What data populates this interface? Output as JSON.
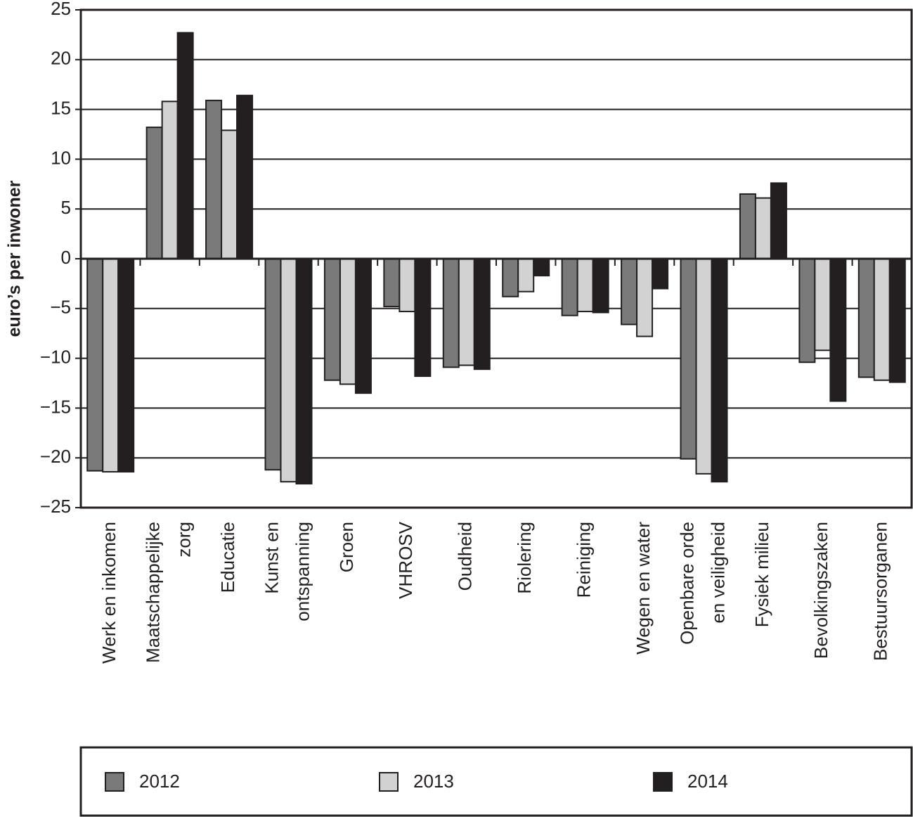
{
  "chart_data": {
    "type": "bar",
    "y_label": "euro’s per inwoner",
    "categories": [
      [
        "Werk en inkomen"
      ],
      [
        "Maatschappelijke",
        "zorg"
      ],
      [
        "Educatie"
      ],
      [
        "Kunst en",
        "ontspanning"
      ],
      [
        "Groen"
      ],
      [
        "VHROSV"
      ],
      [
        "Oudheid"
      ],
      [
        "Riolering"
      ],
      [
        "Reiniging"
      ],
      [
        "Wegen en water"
      ],
      [
        "Openbare orde",
        "en veiligheid"
      ],
      [
        "Fysiek milieu"
      ],
      [
        "Bevolkingszaken"
      ],
      [
        "Bestuursorganen"
      ]
    ],
    "series": [
      {
        "name": "2012",
        "color": "#7a7a7a",
        "values": [
          -21.3,
          13.2,
          15.9,
          -21.2,
          -12.2,
          -4.8,
          -10.9,
          -3.8,
          -5.7,
          -6.6,
          -20.1,
          6.5,
          -10.4,
          -11.9
        ]
      },
      {
        "name": "2013",
        "color": "#d2d2d2",
        "values": [
          -21.4,
          15.8,
          12.9,
          -22.4,
          -12.6,
          -5.3,
          -10.7,
          -3.3,
          -5.3,
          -7.8,
          -21.6,
          6.1,
          -9.2,
          -12.2
        ]
      },
      {
        "name": "2014",
        "color": "#231f20",
        "values": [
          -21.4,
          22.7,
          16.4,
          -22.6,
          -13.5,
          -11.8,
          -11.1,
          -1.7,
          -5.4,
          -3.0,
          -22.4,
          7.6,
          -14.3,
          -12.4
        ]
      }
    ],
    "ylim": [
      -25,
      25
    ],
    "yticks": [
      {
        "value": -25,
        "label": "−25"
      },
      {
        "value": -20,
        "label": "−20"
      },
      {
        "value": -15,
        "label": "−15"
      },
      {
        "value": -10,
        "label": "−10"
      },
      {
        "value": -5,
        "label": "−5"
      },
      0,
      5,
      10,
      15,
      20,
      25
    ],
    "grid": true
  }
}
